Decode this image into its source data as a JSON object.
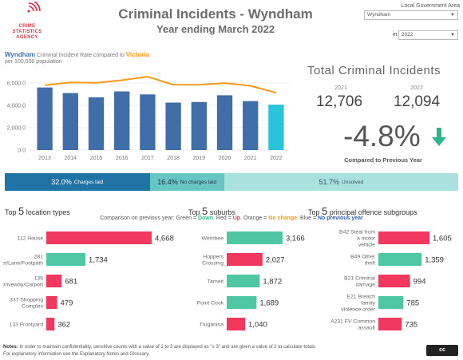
{
  "header": {
    "logo_lines": [
      "CRIME",
      "STATISTICS",
      "AGENCY"
    ],
    "title": "Criminal Incidents - Wyndham",
    "subtitle": "Year ending March 2022",
    "lga_label": "Local Government Area",
    "lga_selected": "Wyndham",
    "in_label": "in",
    "year_selected": "2022"
  },
  "rate": {
    "area_name": "Wyndham",
    "title_mid": " Criminal Incident Rate compared to ",
    "compare_name": "Victoria",
    "subtitle": "per 100,000 population"
  },
  "totals": {
    "title": "Total Criminal Incidents",
    "year1_label": "2021",
    "year1_value": "12,706",
    "year2_label": "2022",
    "year2_value": "12,094",
    "change": "-4.8%",
    "compared": "Compared to Previous Year"
  },
  "outcomes": [
    {
      "pct": "32.0%",
      "label": "Charges laid",
      "value": 32.0
    },
    {
      "pct": "16.4%",
      "label": "No charges laid",
      "value": 16.4
    },
    {
      "pct": "51.7%",
      "label": "Unsolved",
      "value": 51.7
    }
  ],
  "sections": {
    "locations": {
      "pre": "Top ",
      "n": "5",
      "post": " location types"
    },
    "suburbs": {
      "pre": "Top ",
      "n": "5",
      "post": " suburbs"
    },
    "offences": {
      "pre": "Top ",
      "n": "5",
      "post": " principal offence subgroups"
    }
  },
  "legend": {
    "prefix": "Comparison on previous year: Green = ",
    "down": "Down",
    "mid1": ". Red = ",
    "up": "Up",
    "mid2": ". Orange = ",
    "nochange": "No change",
    "mid3": ". Blue = ",
    "noprev": "No previous year"
  },
  "colors": {
    "bar_blue": "#3f6ea8",
    "bar_cyan": "#29c3da",
    "victoria_line": "#f59a1c",
    "down_green": "#4fc7a4",
    "up_red": "#f2385f"
  },
  "chart_data": [
    {
      "type": "bar",
      "categories": [
        "2013",
        "2014",
        "2015",
        "2016",
        "2017",
        "2018",
        "2019",
        "2020",
        "2021",
        "2022"
      ],
      "series": [
        {
          "name": "Wyndham",
          "values": [
            5600,
            5100,
            4720,
            5250,
            4980,
            4250,
            4300,
            4900,
            4380,
            4060
          ]
        },
        {
          "name": "Victoria",
          "values": [
            5800,
            6050,
            6020,
            6250,
            6570,
            5850,
            5840,
            5990,
            5750,
            5130
          ]
        }
      ],
      "yticks": [
        "0.0",
        "2,000.0",
        "4,000.0",
        "6,000.0"
      ],
      "ylim": [
        0,
        7000
      ]
    },
    {
      "type": "bar",
      "orientation": "horizontal",
      "categories": [
        "112 House",
        "281 Street/Lane/Footpath",
        "136 Driveway/Carport",
        "337 Shopping Complex",
        "133 Frontyard"
      ],
      "values": [
        4668,
        1734,
        681,
        479,
        362
      ],
      "labels": [
        "4,668",
        "1,734",
        "681",
        "479",
        "362"
      ],
      "trend": [
        "up",
        "down",
        "up",
        "up",
        "up"
      ]
    },
    {
      "type": "bar",
      "orientation": "horizontal",
      "categories": [
        "Werribee",
        "Hoppers Crossing",
        "Tarneit",
        "Point Cook",
        "Truganina"
      ],
      "values": [
        3166,
        2027,
        1872,
        1689,
        1040
      ],
      "labels": [
        "3,166",
        "2,027",
        "1,872",
        "1,689",
        "1,040"
      ],
      "trend": [
        "down",
        "up",
        "down",
        "down",
        "up"
      ]
    },
    {
      "type": "bar",
      "orientation": "horizontal",
      "categories": [
        "B42 Steal from a motor vehicle",
        "B49 Other theft",
        "B21 Criminal damage",
        "E21 Breach family violence order",
        "A231 FV Common assault"
      ],
      "values": [
        1605,
        1359,
        994,
        785,
        735
      ],
      "labels": [
        "1,605",
        "1,359",
        "994",
        "785",
        "735"
      ],
      "trend": [
        "up",
        "down",
        "up",
        "down",
        "up"
      ]
    }
  ],
  "footer": {
    "notes_label": "Notes:",
    "notes_text": " In order to maintain confidentiality, sensitive counts with a value of 1 to 3 are displayed as \"≤ 3\" and are given a value of 2 to calculate totals.",
    "notes_line2": "For explanatory information see the Explanatory Notes and Glossary.",
    "license": "cc"
  }
}
